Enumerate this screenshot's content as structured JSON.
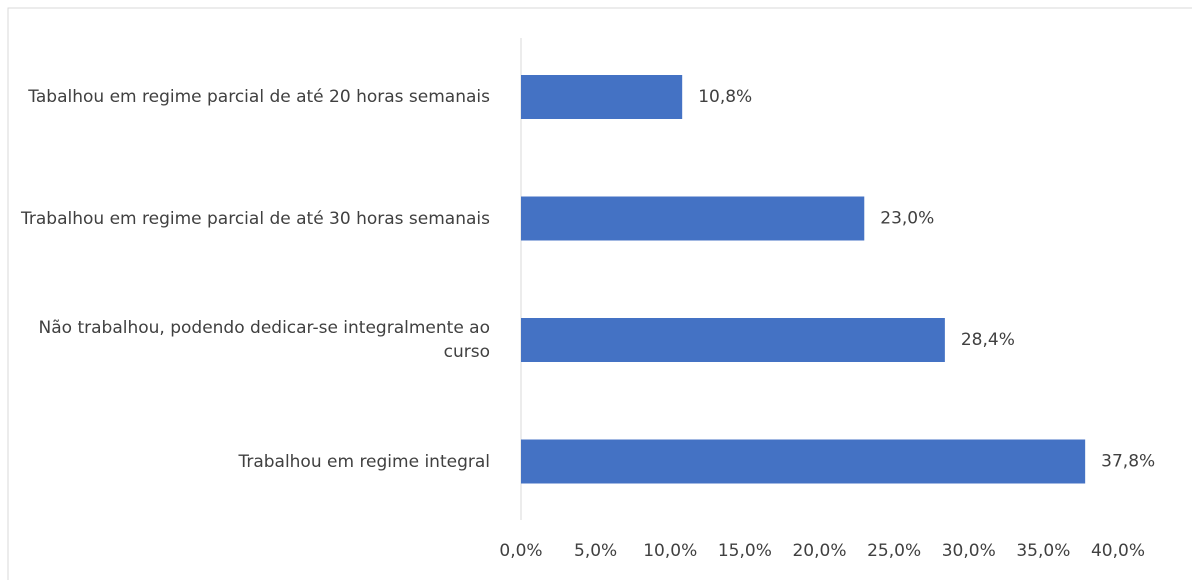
{
  "chart_data": {
    "type": "hbar",
    "categories": [
      "Tabalhou em regime parcial de até 20 horas semanais",
      "Trabalhou em regime parcial de até 30 horas semanais",
      "Não trabalhou, podendo dedicar-se integralmente ao curso",
      "Trabalhou em regime integral"
    ],
    "values": [
      10.8,
      23.0,
      28.4,
      37.8
    ],
    "value_labels": [
      "10,8%",
      "23,0%",
      "28,4%",
      "37,8%"
    ],
    "color": "#4472c4",
    "xlim": [
      0,
      40
    ],
    "xticks": [
      {
        "value": 0,
        "label": "0,0%"
      },
      {
        "value": 5,
        "label": "5,0%"
      },
      {
        "value": 10,
        "label": "10,0%"
      },
      {
        "value": 15,
        "label": "15,0%"
      },
      {
        "value": 20,
        "label": "20,0%"
      },
      {
        "value": 25,
        "label": "25,0%"
      },
      {
        "value": 30,
        "label": "30,0%"
      },
      {
        "value": 35,
        "label": "35,0%"
      },
      {
        "value": 40,
        "label": "40,0%"
      }
    ],
    "grid": false
  }
}
